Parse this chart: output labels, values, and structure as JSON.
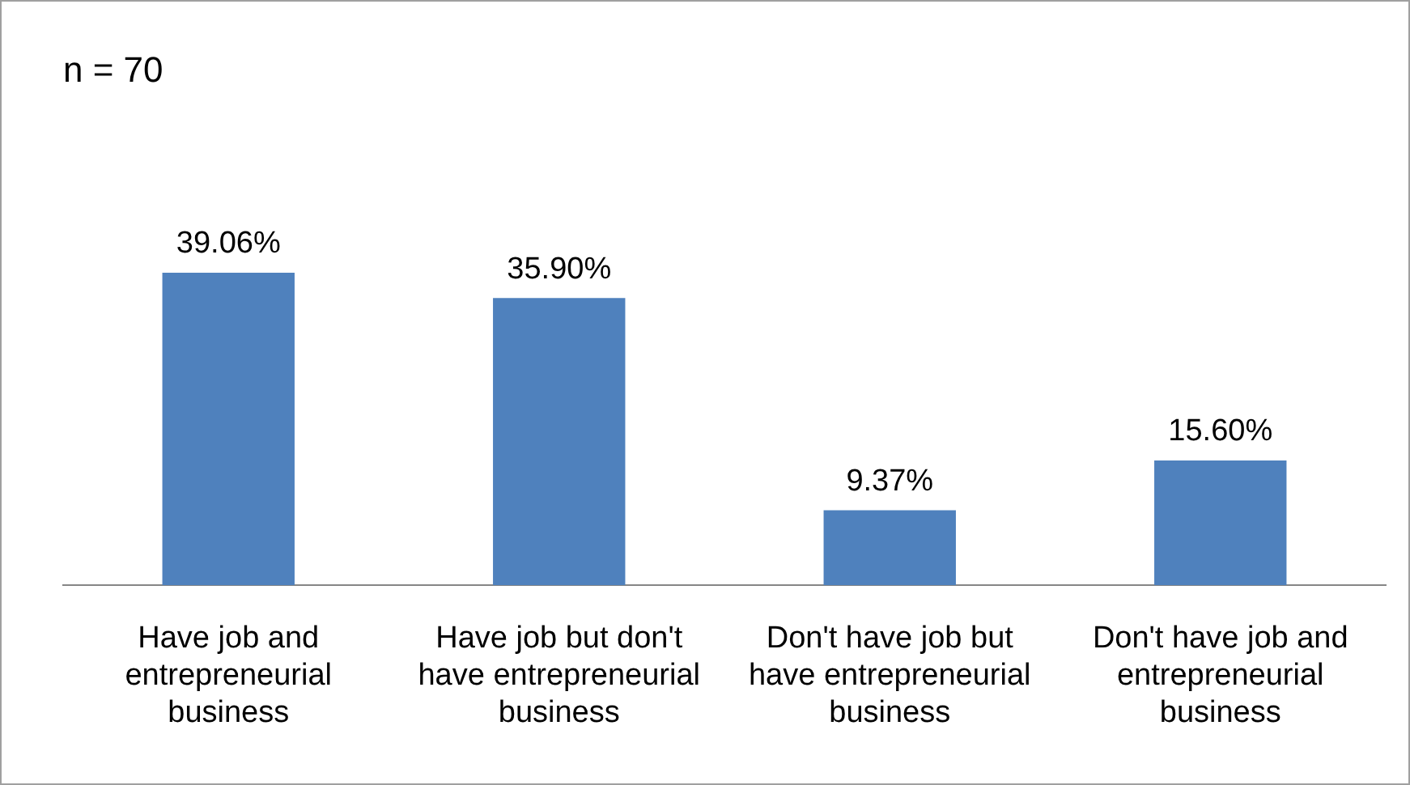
{
  "chart_data": {
    "type": "bar",
    "title": "n = 70",
    "categories": [
      "Have job and entrepreneurial business",
      "Have job but don't have entrepreneurial business",
      "Don't have job but have entrepreneurial business",
      "Don't have job and entrepreneurial business"
    ],
    "values": [
      39.06,
      35.9,
      9.37,
      15.6
    ],
    "value_labels": [
      "39.06%",
      "35.90%",
      "9.37%",
      "15.60%"
    ],
    "color": "#4f81bd",
    "grid": false,
    "legend": false
  }
}
